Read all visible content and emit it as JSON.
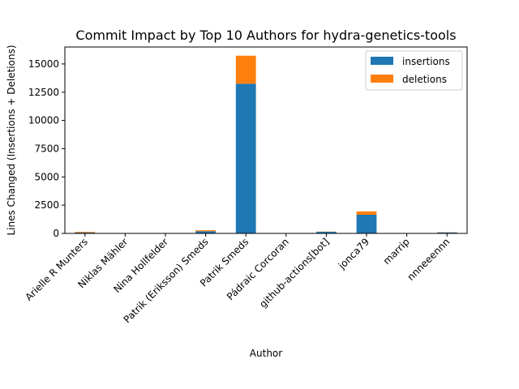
{
  "chart_data": {
    "type": "bar",
    "stacked": true,
    "title": "Commit Impact by Top 10 Authors for hydra-genetics-tools",
    "xlabel": "Author",
    "ylabel": "Lines Changed (Insertions + Deletions)",
    "categories": [
      "Arielle R Munters",
      "Niklas Mähler",
      "Nina Hollfelder",
      "Patrik (Eriksson) Smeds",
      "Patrik Smeds",
      "Pádraic Corcoran",
      "github-actions[bot]",
      "jonca79",
      "marrip",
      "nnneeennn"
    ],
    "series": [
      {
        "name": "insertions",
        "color": "#1f77b4",
        "values": [
          70,
          10,
          5,
          190,
          13250,
          5,
          140,
          1650,
          5,
          90
        ]
      },
      {
        "name": "deletions",
        "color": "#ff7f0e",
        "values": [
          60,
          5,
          3,
          90,
          2480,
          3,
          20,
          300,
          3,
          20
        ]
      }
    ],
    "yticks": [
      0,
      2500,
      5000,
      7500,
      10000,
      12500,
      15000
    ],
    "ytick_labels": [
      "0",
      "2500",
      "5000",
      "7500",
      "10000",
      "12500",
      "15000"
    ],
    "ylim": [
      0,
      16500
    ],
    "legend_position": "top-right",
    "grid": false
  }
}
